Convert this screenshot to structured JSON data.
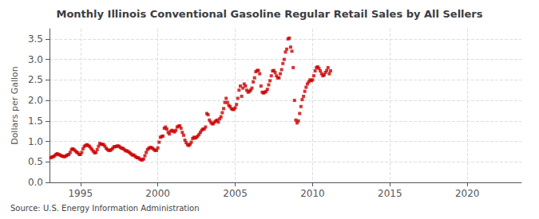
{
  "chart_data": {
    "type": "scatter",
    "title": "Monthly Illinois Conventional Gasoline Regular Retail Sales by All Sellers",
    "ylabel": "Dollars per Gallon",
    "annotations": [
      "Source: U.S. Energy Information Administration"
    ],
    "color": "#cc0000",
    "marker": "square",
    "grid": true,
    "xlim": [
      1993.0,
      2023.5
    ],
    "ylim": [
      0.0,
      3.75
    ],
    "xticks": [
      1995,
      2000,
      2005,
      2010,
      2015,
      2020
    ],
    "yticks": [
      {
        "value": 0.0,
        "label": "0.0"
      },
      0.5,
      {
        "value": 1.0,
        "label": "1.0"
      },
      1.5,
      {
        "value": 2.0,
        "label": "2.0"
      },
      2.5,
      {
        "value": 3.0,
        "label": "3.0"
      },
      3.5
    ],
    "x": [
      1993.083,
      1993.167,
      1993.25,
      1993.333,
      1993.417,
      1993.5,
      1993.583,
      1993.667,
      1993.75,
      1993.833,
      1993.917,
      1994.0,
      1994.083,
      1994.167,
      1994.25,
      1994.333,
      1994.417,
      1994.5,
      1994.583,
      1994.667,
      1994.75,
      1994.833,
      1994.917,
      1995.0,
      1995.083,
      1995.167,
      1995.25,
      1995.333,
      1995.417,
      1995.5,
      1995.583,
      1995.667,
      1995.75,
      1995.833,
      1995.917,
      1996.0,
      1996.083,
      1996.167,
      1996.25,
      1996.333,
      1996.417,
      1996.5,
      1996.583,
      1996.667,
      1996.75,
      1996.833,
      1996.917,
      1997.0,
      1997.083,
      1997.167,
      1997.25,
      1997.333,
      1997.417,
      1997.5,
      1997.583,
      1997.667,
      1997.75,
      1997.833,
      1997.917,
      1998.0,
      1998.083,
      1998.167,
      1998.25,
      1998.333,
      1998.417,
      1998.5,
      1998.583,
      1998.667,
      1998.75,
      1998.833,
      1998.917,
      1999.0,
      1999.083,
      1999.167,
      1999.25,
      1999.333,
      1999.417,
      1999.5,
      1999.583,
      1999.667,
      1999.75,
      1999.833,
      1999.917,
      2000.0,
      2000.083,
      2000.167,
      2000.25,
      2000.333,
      2000.417,
      2000.5,
      2000.583,
      2000.667,
      2000.75,
      2000.833,
      2000.917,
      2001.0,
      2001.083,
      2001.167,
      2001.25,
      2001.333,
      2001.417,
      2001.5,
      2001.583,
      2001.667,
      2001.75,
      2001.833,
      2001.917,
      2002.0,
      2002.083,
      2002.167,
      2002.25,
      2002.333,
      2002.417,
      2002.5,
      2002.583,
      2002.667,
      2002.75,
      2002.833,
      2002.917,
      2003.0,
      2003.083,
      2003.167,
      2003.25,
      2003.333,
      2003.417,
      2003.5,
      2003.583,
      2003.667,
      2003.75,
      2003.833,
      2003.917,
      2004.0,
      2004.083,
      2004.167,
      2004.25,
      2004.333,
      2004.417,
      2004.5,
      2004.583,
      2004.667,
      2004.75,
      2004.833,
      2004.917,
      2005.0,
      2005.083,
      2005.167,
      2005.25,
      2005.333,
      2005.417,
      2005.5,
      2005.583,
      2005.667,
      2005.75,
      2005.833,
      2005.917,
      2006.0,
      2006.083,
      2006.167,
      2006.25,
      2006.333,
      2006.417,
      2006.5,
      2006.583,
      2006.667,
      2006.75,
      2006.833,
      2006.917,
      2007.0,
      2007.083,
      2007.167,
      2007.25,
      2007.333,
      2007.417,
      2007.5,
      2007.583,
      2007.667,
      2007.75,
      2007.833,
      2007.917,
      2008.0,
      2008.083,
      2008.167,
      2008.25,
      2008.333,
      2008.417,
      2008.5,
      2008.583,
      2008.667,
      2008.75,
      2008.833,
      2008.917,
      2009.0,
      2009.083,
      2009.167,
      2009.25,
      2009.333,
      2009.417,
      2009.5,
      2009.583,
      2009.667,
      2009.75,
      2009.833,
      2009.917,
      2010.0,
      2010.083,
      2010.167,
      2010.25,
      2010.333,
      2010.417,
      2010.5,
      2010.583,
      2010.667,
      2010.75,
      2010.833,
      2010.917,
      2011.0,
      2011.083,
      2011.167
    ],
    "values": [
      0.6,
      0.62,
      0.63,
      0.65,
      0.68,
      0.7,
      0.68,
      0.67,
      0.65,
      0.64,
      0.63,
      0.63,
      0.65,
      0.67,
      0.68,
      0.73,
      0.8,
      0.82,
      0.8,
      0.77,
      0.74,
      0.72,
      0.68,
      0.68,
      0.73,
      0.82,
      0.88,
      0.9,
      0.92,
      0.9,
      0.88,
      0.84,
      0.8,
      0.76,
      0.72,
      0.73,
      0.8,
      0.88,
      0.95,
      0.93,
      0.93,
      0.92,
      0.88,
      0.83,
      0.8,
      0.78,
      0.78,
      0.8,
      0.83,
      0.87,
      0.87,
      0.88,
      0.89,
      0.88,
      0.85,
      0.83,
      0.83,
      0.8,
      0.77,
      0.77,
      0.75,
      0.73,
      0.7,
      0.67,
      0.67,
      0.65,
      0.62,
      0.6,
      0.6,
      0.57,
      0.55,
      0.55,
      0.57,
      0.65,
      0.73,
      0.8,
      0.83,
      0.85,
      0.85,
      0.83,
      0.8,
      0.78,
      0.78,
      0.84,
      0.98,
      1.1,
      1.12,
      1.13,
      1.32,
      1.35,
      1.3,
      1.22,
      1.18,
      1.25,
      1.27,
      1.25,
      1.23,
      1.27,
      1.35,
      1.37,
      1.38,
      1.32,
      1.22,
      1.15,
      1.03,
      0.97,
      0.92,
      0.9,
      0.93,
      0.98,
      1.07,
      1.1,
      1.08,
      1.1,
      1.13,
      1.17,
      1.22,
      1.27,
      1.3,
      1.3,
      1.35,
      1.68,
      1.65,
      1.52,
      1.47,
      1.43,
      1.43,
      1.47,
      1.5,
      1.52,
      1.47,
      1.55,
      1.6,
      1.7,
      1.8,
      1.95,
      2.05,
      1.95,
      1.88,
      1.85,
      1.8,
      1.78,
      1.78,
      1.82,
      1.9,
      2.05,
      2.25,
      2.35,
      2.1,
      2.3,
      2.4,
      2.35,
      2.25,
      2.2,
      2.22,
      2.25,
      2.3,
      2.45,
      2.55,
      2.7,
      2.73,
      2.73,
      2.65,
      2.35,
      2.2,
      2.18,
      2.2,
      2.22,
      2.27,
      2.38,
      2.48,
      2.6,
      2.72,
      2.73,
      2.68,
      2.6,
      2.55,
      2.55,
      2.65,
      2.75,
      2.9,
      3.0,
      3.18,
      3.25,
      3.5,
      3.52,
      3.3,
      3.2,
      2.8,
      2.0,
      1.52,
      1.45,
      1.5,
      1.68,
      1.85,
      2.02,
      2.1,
      2.22,
      2.32,
      2.4,
      2.45,
      2.5,
      2.48,
      2.5,
      2.6,
      2.72,
      2.8,
      2.82,
      2.78,
      2.72,
      2.65,
      2.6,
      2.62,
      2.68,
      2.73,
      2.8,
      2.65,
      2.72
    ]
  }
}
